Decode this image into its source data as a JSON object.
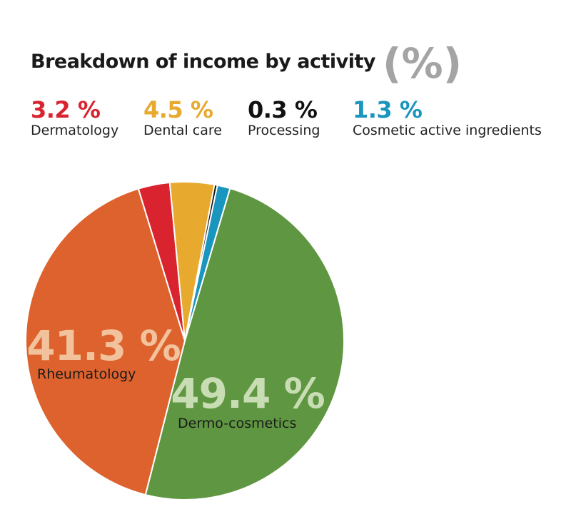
{
  "header": {
    "title": "Breakdown of income by activity",
    "unit": "(%)"
  },
  "legend": [
    {
      "value": "3.2 %",
      "label": "Dermatology",
      "color": "#d9232e"
    },
    {
      "value": "4.5 %",
      "label": "Dental care",
      "color": "#e8a92f"
    },
    {
      "value": "0.3 %",
      "label": "Processing",
      "color": "#111111"
    },
    {
      "value": "1.3 %",
      "label": "Cosmetic active ingredients",
      "color": "#1a95bd"
    }
  ],
  "chart_data": {
    "type": "pie",
    "title": "Breakdown of income by activity (%)",
    "slices": [
      {
        "label": "Dermo-cosmetics",
        "value": 49.4,
        "value_label": "49.4 %",
        "color": "#5f9641"
      },
      {
        "label": "Rheumatology",
        "value": 41.3,
        "value_label": "41.3 %",
        "color": "#dd622d"
      },
      {
        "label": "Dermatology",
        "value": 3.2,
        "value_label": "3.2 %",
        "color": "#d9232e"
      },
      {
        "label": "Dental care",
        "value": 4.5,
        "value_label": "4.5 %",
        "color": "#e8a92f"
      },
      {
        "label": "Processing",
        "value": 0.3,
        "value_label": "0.3 %",
        "color": "#111111"
      },
      {
        "label": "Cosmetic active ingredients",
        "value": 1.3,
        "value_label": "1.3 %",
        "color": "#1a95bd"
      }
    ],
    "inside_labels": [
      {
        "slice": "Rheumatology",
        "value_color": "#f1c29c",
        "label_color": "#1a1a1a"
      },
      {
        "slice": "Dermo-cosmetics",
        "value_color": "#c8ddb4",
        "label_color": "#1a1a1a"
      }
    ]
  }
}
